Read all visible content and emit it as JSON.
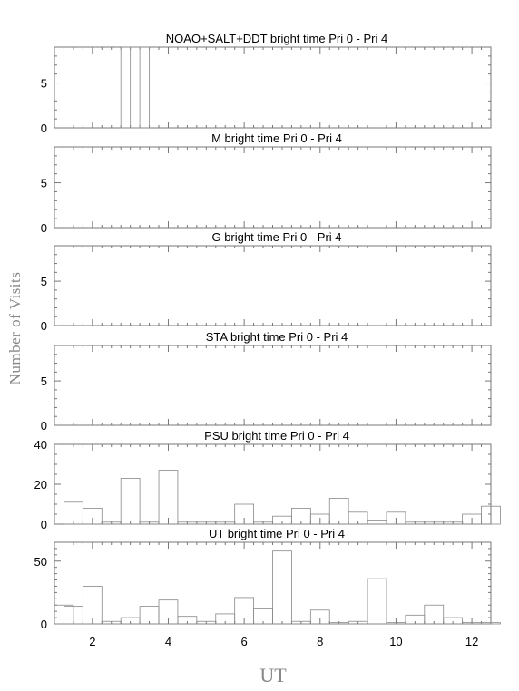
{
  "ylabel": "Number of Visits",
  "xlabel": "UT",
  "xlim": [
    1,
    12.5
  ],
  "xticks": [
    2,
    4,
    6,
    8,
    10,
    12
  ],
  "chart_data": [
    {
      "type": "bar",
      "title": "NOAO+SALT+DDT    bright time Pri 0 - Pri 4",
      "ylim": [
        0,
        9
      ],
      "yticks": [
        0,
        5
      ],
      "bin_width": 0.5,
      "bin_starts": [
        2.75,
        3.0
      ],
      "values": [
        9,
        9
      ]
    },
    {
      "type": "bar",
      "title": "M    bright time Pri 0 - Pri 4",
      "ylim": [
        0,
        9
      ],
      "yticks": [
        0,
        5
      ],
      "bin_width": 0.5,
      "bin_starts": [],
      "values": []
    },
    {
      "type": "bar",
      "title": "G    bright time Pri 0 - Pri 4",
      "ylim": [
        0,
        9
      ],
      "yticks": [
        0,
        5
      ],
      "bin_width": 0.5,
      "bin_starts": [],
      "values": []
    },
    {
      "type": "bar",
      "title": "STA    bright time Pri 0 - Pri 4",
      "ylim": [
        0,
        9
      ],
      "yticks": [
        0,
        5
      ],
      "bin_width": 0.5,
      "bin_starts": [],
      "values": []
    },
    {
      "type": "bar",
      "title": "PSU    bright time Pri 0 - Pri 4",
      "ylim": [
        0,
        40
      ],
      "yticks": [
        0,
        20,
        40
      ],
      "bin_width": 0.5,
      "bin_starts": [
        1.25,
        1.75,
        2.25,
        2.75,
        3.25,
        3.75,
        4.25,
        4.75,
        5.25,
        5.75,
        6.25,
        6.75,
        7.25,
        7.75,
        8.25,
        8.75,
        9.25,
        9.75,
        10.25,
        10.75,
        11.25,
        11.75,
        12.25
      ],
      "values": [
        11,
        8,
        1,
        23,
        1,
        27,
        1,
        1,
        1,
        10,
        1,
        4,
        8,
        5,
        13,
        6,
        2,
        6,
        1,
        1,
        1,
        5,
        9
      ]
    },
    {
      "type": "bar",
      "title": "UT    bright time Pri 0 - Pri 4",
      "ylim": [
        0,
        65
      ],
      "yticks": [
        0,
        50
      ],
      "bin_width": 0.5,
      "bin_starts": [
        1.0,
        1.25,
        1.75,
        2.25,
        2.75,
        3.25,
        3.75,
        4.25,
        4.75,
        5.25,
        5.75,
        6.25,
        6.75,
        7.25,
        7.75,
        8.25,
        8.75,
        9.25,
        9.75,
        10.25,
        10.75,
        11.25,
        11.75,
        12.25
      ],
      "values": [
        15,
        14,
        30,
        2,
        5,
        14,
        19,
        6,
        2,
        8,
        21,
        12,
        58,
        2,
        11,
        1,
        2,
        36,
        1,
        7,
        15,
        5,
        1,
        1
      ]
    }
  ]
}
